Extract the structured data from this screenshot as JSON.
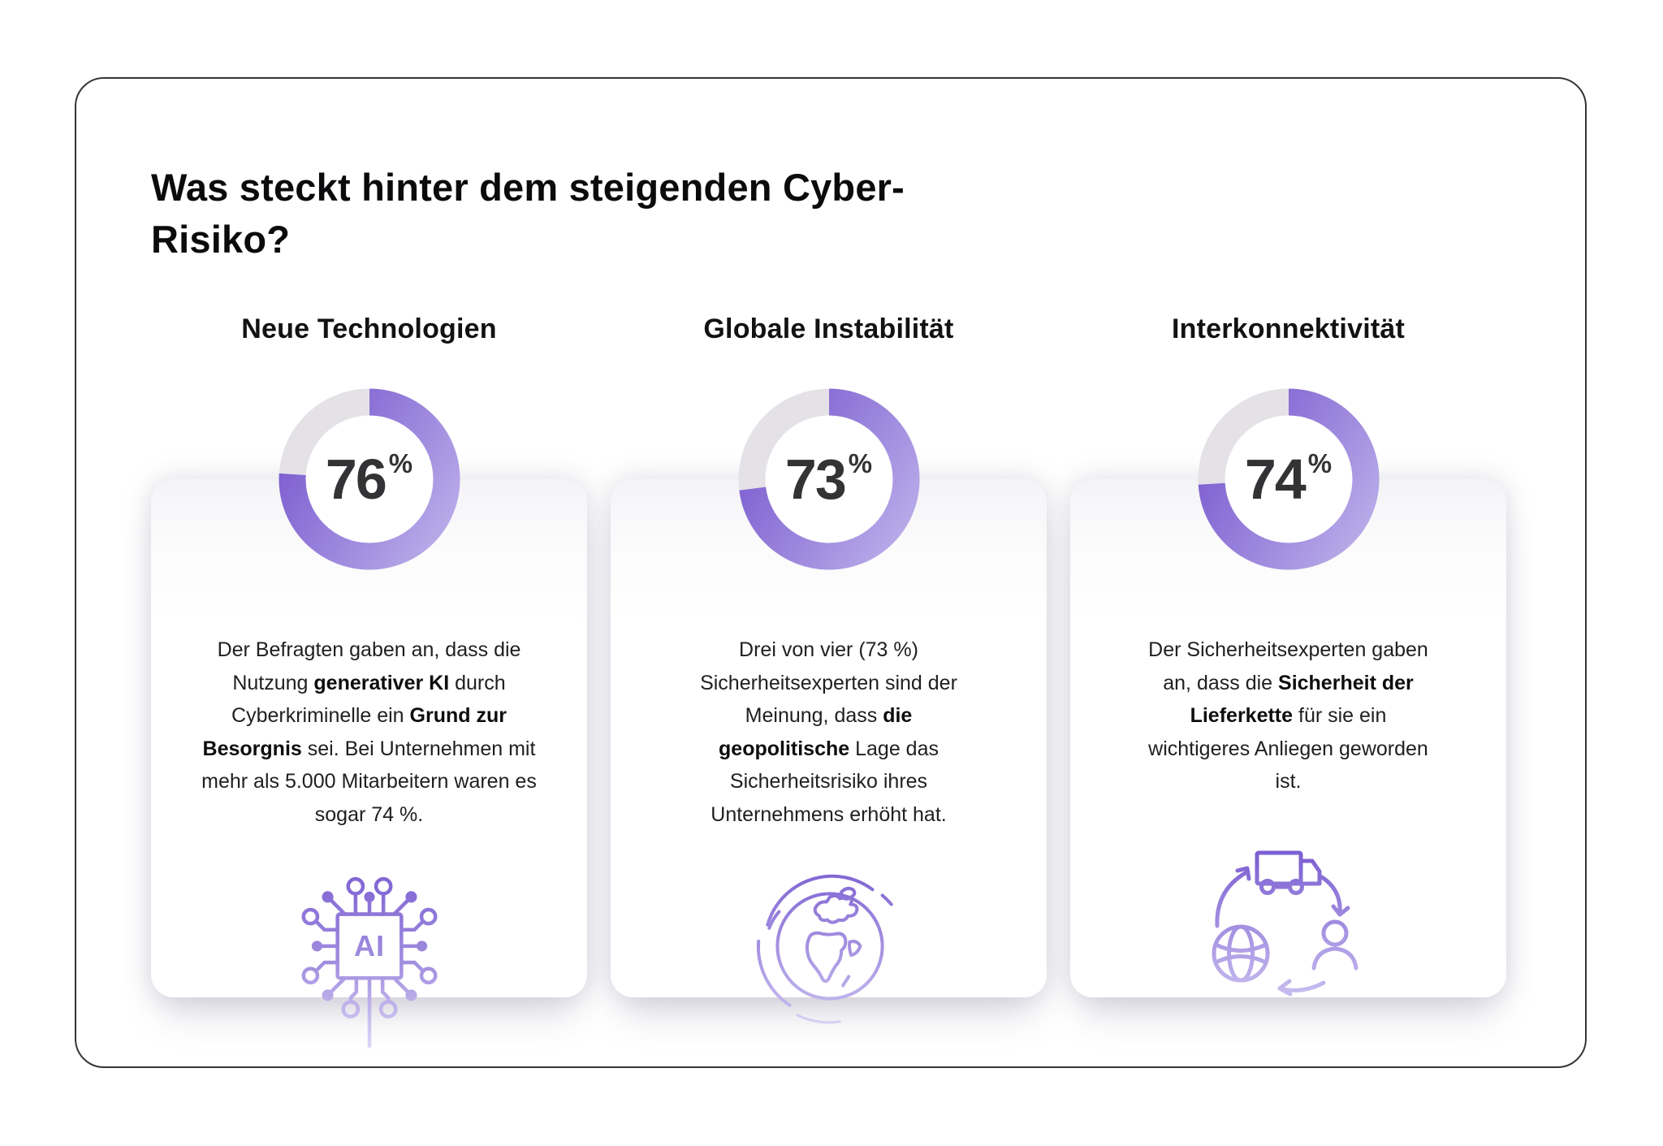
{
  "page": {
    "title": "Was steckt hinter dem steigenden Cyber-Risiko?"
  },
  "columns": [
    {
      "heading": "Neue Technologien",
      "percent_value": "76",
      "percent_unit": "%",
      "icon": "ai-chip",
      "description": [
        {
          "text": "Der Befragten gaben an, dass die Nutzung ",
          "bold": false
        },
        {
          "text": "generativer KI",
          "bold": true
        },
        {
          "text": " durch Cyberkriminelle ein ",
          "bold": false
        },
        {
          "text": "Grund zur Besorgnis",
          "bold": true
        },
        {
          "text": " sei. Bei Unternehmen mit mehr als 5.000 Mitarbeitern waren es sogar 74 %.",
          "bold": false
        }
      ]
    },
    {
      "heading": "Globale Instabilität",
      "percent_value": "73",
      "percent_unit": "%",
      "icon": "globe",
      "description": [
        {
          "text": "Drei von vier (73 %) Sicherheitsexperten sind der Meinung, dass ",
          "bold": false
        },
        {
          "text": "die geopolitische",
          "bold": true
        },
        {
          "text": " Lage das Sicherheitsrisiko ihres Unternehmens erhöht hat.",
          "bold": false
        }
      ]
    },
    {
      "heading": "Interkonnektivität",
      "percent_value": "74",
      "percent_unit": "%",
      "icon": "supply-chain",
      "description": [
        {
          "text": "Der Sicherheitsexperten gaben an, dass die ",
          "bold": false
        },
        {
          "text": "Sicherheit der Lieferkette",
          "bold": true
        },
        {
          "text": " für sie ein wichtigeres Anliegen geworden ist.",
          "bold": false
        }
      ]
    }
  ],
  "chart_data": {
    "type": "donut",
    "charts": [
      {
        "title": "Neue Technologien",
        "value": 76,
        "max": 100,
        "unit": "%",
        "center_label": "76%"
      },
      {
        "title": "Globale Instabilität",
        "value": 73,
        "max": 100,
        "unit": "%",
        "center_label": "73%"
      },
      {
        "title": "Interkonnektivität",
        "value": 74,
        "max": 100,
        "unit": "%",
        "center_label": "74%"
      }
    ],
    "start_angle_deg": 0,
    "direction": "clockwise",
    "colors": {
      "progress_gradient_start": "#7d5ed0",
      "progress_gradient_end": "#b9ace9",
      "track": "#e4e2e7",
      "value_text": "#333335"
    }
  }
}
